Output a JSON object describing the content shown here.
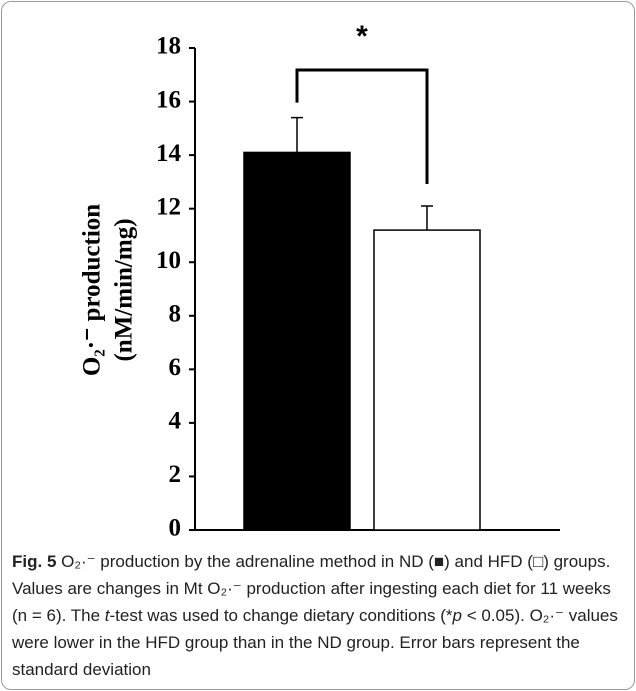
{
  "chart_data": {
    "type": "bar",
    "y_label_lines": [
      "O₂·⁻ production",
      "(nM/min/mg)"
    ],
    "categories": [
      null,
      null
    ],
    "series": [
      {
        "colors": [
          "#000000",
          "#ffffff"
        ],
        "values": [
          14.1,
          11.2
        ],
        "errors": [
          1.3,
          0.9
        ]
      }
    ],
    "ylim": [
      0,
      18
    ],
    "yticks": [
      0,
      2,
      4,
      6,
      8,
      10,
      12,
      14,
      16,
      18
    ],
    "annotations": [
      {
        "text": "*"
      }
    ]
  },
  "caption": {
    "label": "Fig. 5",
    "segments": [
      {
        "text": " O₂·⁻ production by the adrenaline method in ND (■) and HFD (□) groups. Values are changes in Mt O₂·⁻ production after ingesting each diet for 11 weeks (n = 6). The ",
        "italic": false
      },
      {
        "text": "t",
        "italic": true
      },
      {
        "text": "-test was used to change dietary conditions (*",
        "italic": false
      },
      {
        "text": "p",
        "italic": true
      },
      {
        "text": " < 0.05). O₂·⁻ values were lower in the HFD group than in the ND group. Error bars represent the standard deviation",
        "italic": false
      }
    ]
  }
}
